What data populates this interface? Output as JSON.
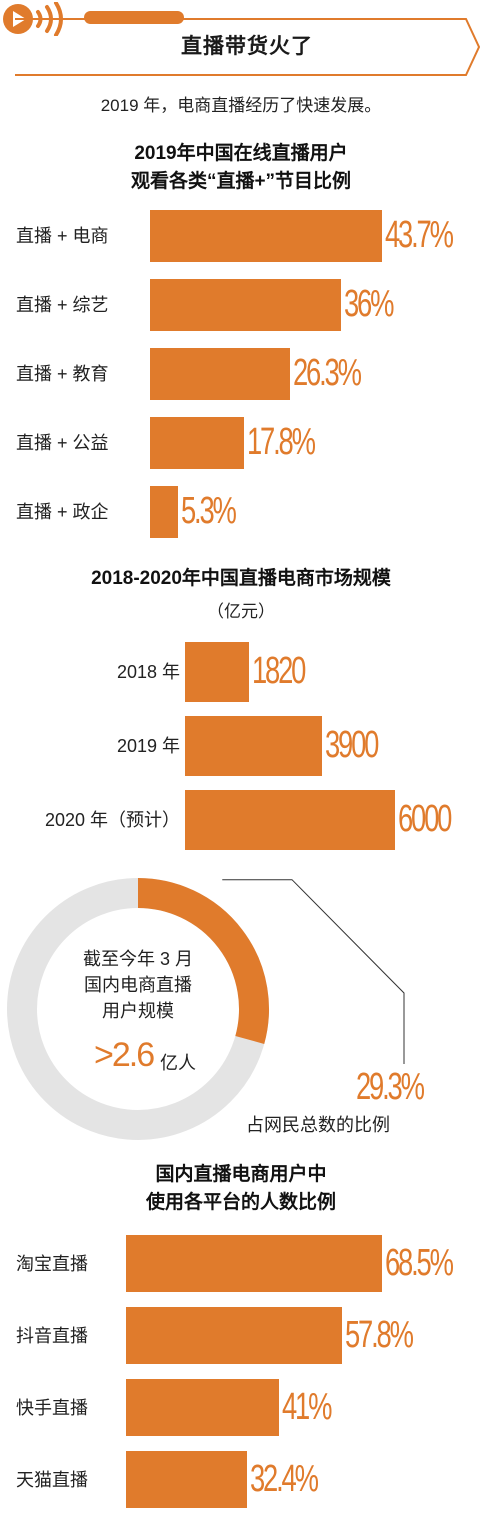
{
  "header": {
    "title": "直播带货火了",
    "intro": "2019 年，电商直播经历了快速发展。"
  },
  "colors": {
    "accent": "#e07b2c",
    "ring": "#e4e4e4"
  },
  "icons": {
    "logo": "play-sound-icon"
  },
  "chart_data": [
    {
      "type": "bar",
      "orientation": "horizontal",
      "title": "2019年中国在线直播用户观看各类“直播+”节目比例",
      "title_lines": [
        "2019年中国在线直播用户",
        "观看各类“直播+”节目比例"
      ],
      "categories": [
        "直播 + 电商",
        "直播 + 综艺",
        "直播 + 教育",
        "直播 + 公益",
        "直播 + 政企"
      ],
      "values": [
        43.7,
        36,
        26.3,
        17.8,
        5.3
      ],
      "value_labels": [
        "43.7%",
        "36%",
        "26.3%",
        "17.8%",
        "5.3%"
      ],
      "unit": "%"
    },
    {
      "type": "bar",
      "orientation": "horizontal",
      "title": "2018-2020年中国直播电商市场规模",
      "subtitle": "（亿元）",
      "categories": [
        "2018 年",
        "2019 年",
        "2020 年（预计）"
      ],
      "values": [
        1820,
        3900,
        6000
      ],
      "value_labels": [
        "1820",
        "3900",
        "6000"
      ]
    },
    {
      "type": "pie",
      "style": "donut",
      "center_text_lines": [
        "截至今年 3 月",
        "国内电商直播",
        "用户规模"
      ],
      "center_value": ">2.6",
      "center_unit": "亿人",
      "slices": [
        {
          "label": "占网民总数的比例",
          "value": 29.3
        },
        {
          "label": "",
          "value": 70.7
        }
      ],
      "highlight_label": "29.3%",
      "highlight_caption": "占网民总数的比例"
    },
    {
      "type": "bar",
      "orientation": "horizontal",
      "title": "国内直播电商用户中使用各平台的人数比例",
      "title_lines": [
        "国内直播电商用户中",
        "使用各平台的人数比例"
      ],
      "categories": [
        "淘宝直播",
        "抖音直播",
        "快手直播",
        "天猫直播"
      ],
      "values": [
        68.5,
        57.8,
        41,
        32.4
      ],
      "value_labels": [
        "68.5%",
        "57.8%",
        "41%",
        "32.4%"
      ],
      "unit": "%"
    }
  ]
}
